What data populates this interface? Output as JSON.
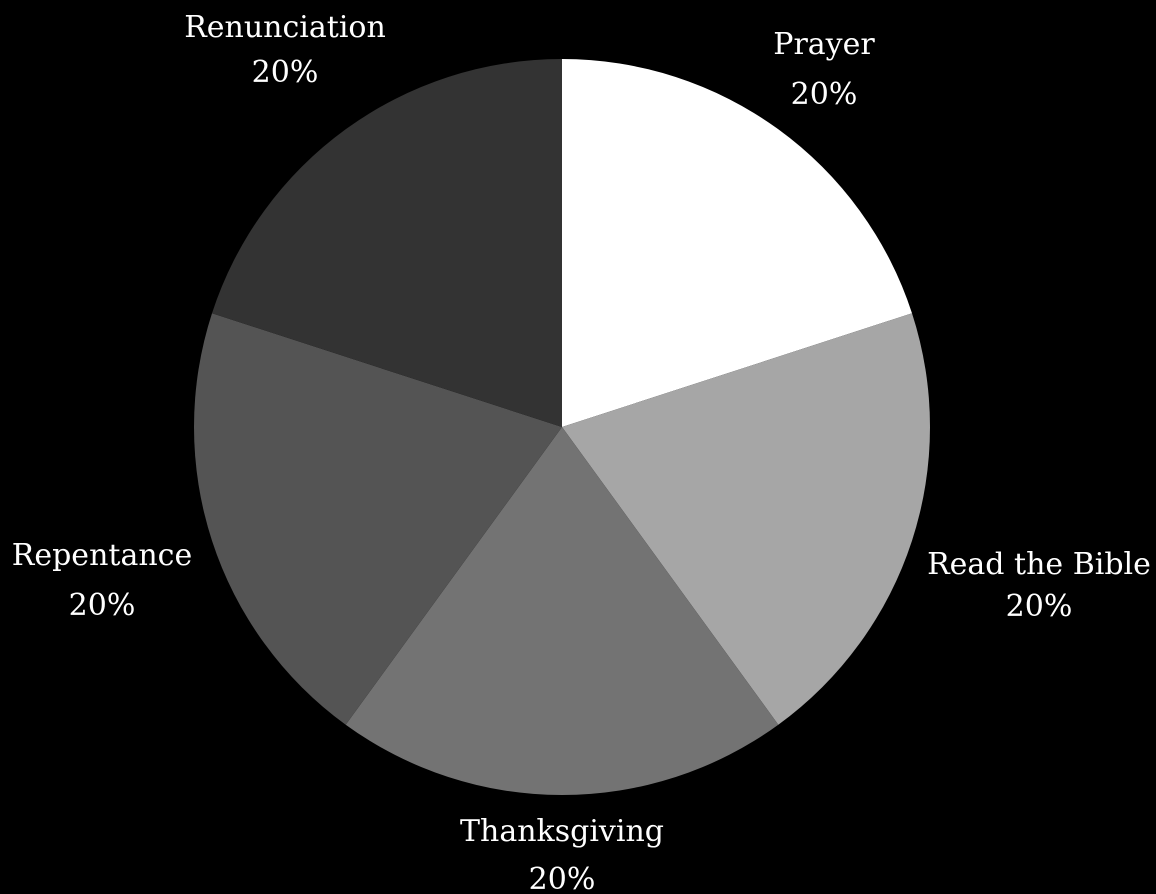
{
  "chart_data": {
    "type": "pie",
    "title": "",
    "categories": [
      "Prayer",
      "Read the Bible",
      "Thanksgiving",
      "Repentance",
      "Renunciation"
    ],
    "values": [
      20,
      20,
      20,
      20,
      20
    ],
    "value_labels": [
      "20%",
      "20%",
      "20%",
      "20%",
      "20%"
    ],
    "colors": [
      "#ffffff",
      "#a6a6a6",
      "#737373",
      "#545454",
      "#333333"
    ],
    "start_angle_deg": 0,
    "direction": "clockwise",
    "labels_outside": true,
    "background": "#000000"
  }
}
